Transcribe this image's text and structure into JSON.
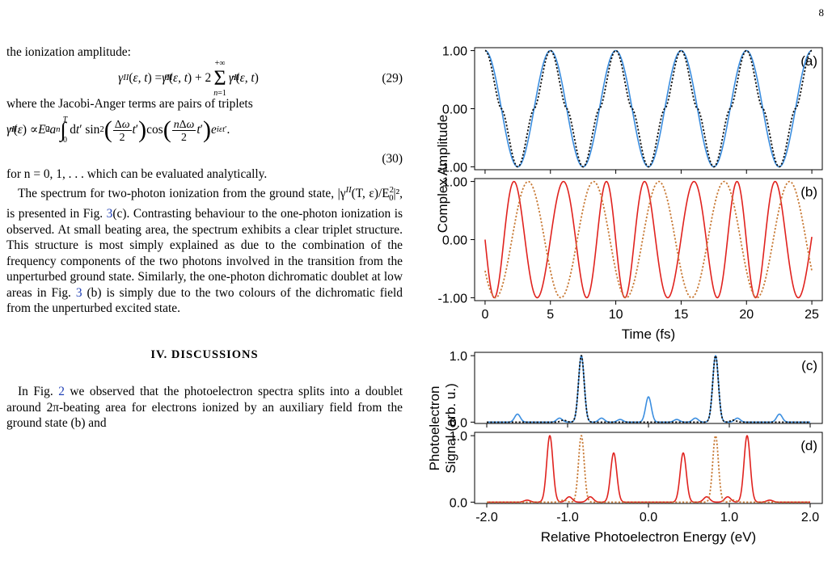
{
  "page_number": "8",
  "text": {
    "intro": "the ionization amplitude:",
    "eq29_number": "(29)",
    "jacobi": "where the Jacobi-Anger terms are pairs of triplets",
    "eq30_number": "(30)",
    "for_n": "for n = 0, 1, . . .  which can be evaluated analytically.",
    "para1a": "The spectrum for two-photon ionization from the ground state, |γ",
    "para1b": "(T, ε)/E",
    "para1c": "|², is presented in Fig. ",
    "fig_ref_3c": "3",
    "para1d": "(c). Contrasting behaviour to the one-photon ionization is observed. At small beating area, the spectrum exhibits a clear triplet structure. This structure is most simply explained as due to the combination of the frequency components of the two photons involved in the transition from the unperturbed ground state. Similarly, the one-photon dichromatic doublet at low areas in Fig. ",
    "fig_ref_3b": "3",
    "para1e": " (b) is simply due to the two colours of the dichromatic field from the unperturbed excited state.",
    "section_heading": "IV.   DISCUSSIONS",
    "para2a": "In Fig. ",
    "fig_ref_2": "2",
    "para2b": " we observed that the photoelectron spectra splits into a doublet around 2π-beating area for electrons ionized by an auxiliary field from the ground state (b) and"
  },
  "chart_data": [
    {
      "type": "line",
      "panel": "(a)",
      "xlim": [
        -0.8,
        25.8
      ],
      "ylim": [
        -1.05,
        1.05
      ],
      "yticks": [
        "1.00",
        "0.00",
        "-1.00"
      ],
      "series": [
        {
          "style": "solid",
          "color": "#3b8ee0",
          "function": "cos",
          "period_fs": 5.0,
          "amplitude": 1.0
        },
        {
          "style": "dotted",
          "color": "#111111",
          "function": "cos",
          "period_fs": 5.0,
          "amplitude": 1.0,
          "sharpened": true
        }
      ]
    },
    {
      "type": "line",
      "panel": "(b)",
      "xlim": [
        -0.8,
        25.8
      ],
      "ylim": [
        -1.05,
        1.05
      ],
      "yticks": [
        "1.00",
        "0.00",
        "-1.00"
      ],
      "xticks": [
        "0",
        "5",
        "10",
        "15",
        "20",
        "25"
      ],
      "xlabel": "Time (fs)",
      "series": [
        {
          "style": "solid",
          "color": "#e0221e",
          "components": [
            {
              "amp": 1.0,
              "period_fs": 3.33
            },
            {
              "amp": 0.0,
              "period_fs": 10.0
            }
          ]
        },
        {
          "style": "dotted",
          "color": "#c87a36",
          "function": "cos-shifted",
          "period_fs": 5.0
        }
      ]
    },
    {
      "type": "line",
      "panel": "(c)",
      "xlim": [
        -2.15,
        2.15
      ],
      "ylim": [
        -0.02,
        1.05
      ],
      "yticks": [
        "1.0",
        "0.0"
      ],
      "series": [
        {
          "style": "solid",
          "color": "#3b8ee0",
          "peaks": [
            [
              -1.62,
              0.12
            ],
            [
              -1.1,
              0.06
            ],
            [
              -0.83,
              1.0
            ],
            [
              -0.58,
              0.06
            ],
            [
              -0.35,
              0.04
            ],
            [
              0.0,
              0.38
            ],
            [
              0.35,
              0.04
            ],
            [
              0.58,
              0.06
            ],
            [
              0.83,
              1.0
            ],
            [
              1.1,
              0.06
            ],
            [
              1.62,
              0.12
            ]
          ]
        },
        {
          "style": "dotted",
          "color": "#111111",
          "peaks": [
            [
              -0.83,
              1.0
            ],
            [
              0.83,
              1.0
            ],
            [
              -1.05,
              0.03
            ],
            [
              1.05,
              0.03
            ]
          ]
        }
      ]
    },
    {
      "type": "line",
      "panel": "(d)",
      "xlim": [
        -2.15,
        2.15
      ],
      "ylim": [
        -0.02,
        1.05
      ],
      "yticks": [
        "1.0",
        "0.0"
      ],
      "xticks": [
        "-2.0",
        "-1.0",
        "0.0",
        "1.0",
        "2.0"
      ],
      "xlabel": "Relative Photoelectron Energy (eV)",
      "series": [
        {
          "style": "solid",
          "color": "#e0221e",
          "peaks": [
            [
              -1.22,
              1.0
            ],
            [
              -0.98,
              0.08
            ],
            [
              -0.72,
              0.08
            ],
            [
              -0.43,
              0.74
            ],
            [
              0.43,
              0.74
            ],
            [
              0.72,
              0.08
            ],
            [
              0.98,
              0.08
            ],
            [
              1.22,
              1.0
            ],
            [
              -1.5,
              0.03
            ],
            [
              1.5,
              0.03
            ]
          ]
        },
        {
          "style": "dotted",
          "color": "#c87a36",
          "peaks": [
            [
              -0.83,
              1.0
            ],
            [
              0.83,
              1.0
            ],
            [
              -1.05,
              0.03
            ],
            [
              1.05,
              0.03
            ]
          ]
        }
      ]
    }
  ],
  "figure": {
    "ylabel_top": "Complex Amplitude",
    "ylabel_bottom_1": "Photoelectron",
    "ylabel_bottom_2": "Signal (arb. u.)"
  }
}
